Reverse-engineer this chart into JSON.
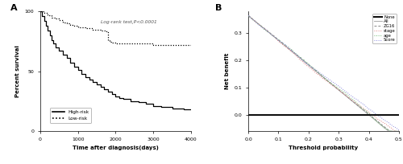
{
  "panel_a": {
    "title_label": "A",
    "xlabel": "Time after diagnosis(days)",
    "ylabel": "Percent survival",
    "xlim": [
      0,
      4000
    ],
    "ylim": [
      0,
      100
    ],
    "xticks": [
      0,
      1000,
      2000,
      3000,
      4000
    ],
    "yticks": [
      0,
      50,
      100
    ],
    "annotation": "Log-rank test,P<0.0001",
    "high_risk_x": [
      0,
      50,
      100,
      150,
      200,
      250,
      300,
      350,
      400,
      500,
      600,
      700,
      800,
      900,
      1000,
      1100,
      1200,
      1300,
      1400,
      1500,
      1600,
      1700,
      1800,
      1900,
      2000,
      2100,
      2200,
      2400,
      2600,
      2800,
      3000,
      3200,
      3500,
      3800,
      4000
    ],
    "high_risk_y": [
      100,
      96,
      92,
      88,
      84,
      80,
      76,
      73,
      70,
      67,
      64,
      61,
      57,
      54,
      51,
      48,
      45,
      43,
      41,
      39,
      37,
      35,
      33,
      31,
      29,
      28,
      27,
      25,
      24,
      23,
      21,
      20,
      19,
      18,
      18
    ],
    "low_risk_x": [
      0,
      100,
      200,
      300,
      400,
      500,
      600,
      700,
      800,
      900,
      1000,
      1100,
      1200,
      1300,
      1400,
      1500,
      1600,
      1700,
      1750,
      1800,
      1850,
      1900,
      2000,
      2500,
      3000,
      3500,
      4000
    ],
    "low_risk_y": [
      100,
      99,
      97,
      95,
      94,
      93,
      91,
      90,
      89,
      88,
      87,
      87,
      86,
      86,
      85,
      85,
      84,
      84,
      83,
      76,
      75,
      74,
      73,
      73,
      72,
      72,
      72
    ],
    "high_risk_color": "#000000",
    "low_risk_color": "#000000"
  },
  "panel_b": {
    "title_label": "B",
    "xlabel": "Threshold probability",
    "ylabel": "Net benefit",
    "xlim": [
      0.0,
      0.5
    ],
    "ylim": [
      -0.06,
      0.38
    ],
    "xticks": [
      0.0,
      0.1,
      0.2,
      0.3,
      0.4,
      0.5
    ],
    "yticks": [
      0.0,
      0.1,
      0.2,
      0.3
    ],
    "none_color": "#111111",
    "all_color": "#aaaaaa",
    "zg16_color": "#888888",
    "stage_color": "#e08080",
    "age_color": "#70b870",
    "score_color": "#8888dd",
    "legend_entries": [
      "None",
      "All",
      "ZG16",
      "stage",
      "age",
      "Score"
    ]
  }
}
